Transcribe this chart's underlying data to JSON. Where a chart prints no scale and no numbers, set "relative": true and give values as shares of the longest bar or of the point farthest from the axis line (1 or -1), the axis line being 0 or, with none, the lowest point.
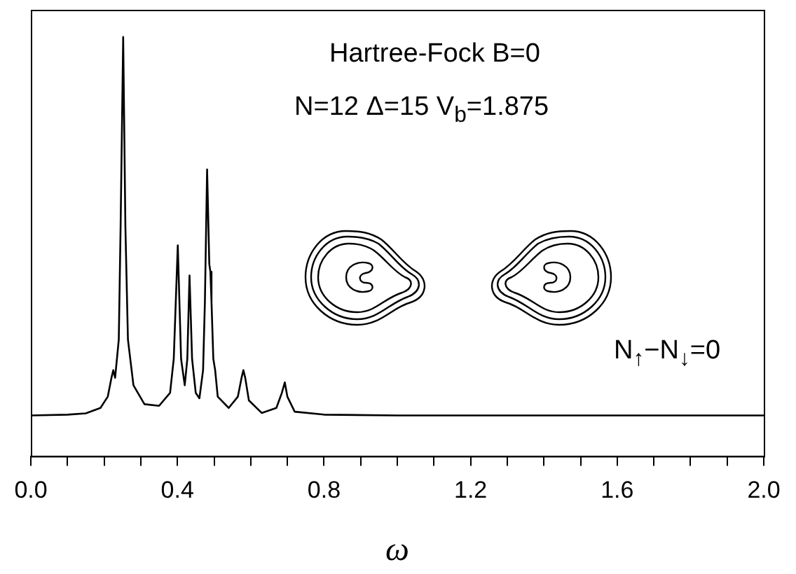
{
  "chart_data": {
    "type": "line",
    "relative": true,
    "xlabel": "ω",
    "annotations": [
      "Hartree-Fock  B=0",
      "N=12   Δ=15   V$_{b}$=1.875",
      "N$_{↑}$−N$_{↓}$=0"
    ],
    "xlim": [
      0,
      2.0
    ],
    "xticks": [
      {
        "value": 0,
        "label": "0.0"
      },
      {
        "value": 0.1,
        "label": null
      },
      {
        "value": 0.2,
        "label": null
      },
      {
        "value": 0.3,
        "label": null
      },
      {
        "value": 0.4,
        "label": "0.4"
      },
      {
        "value": 0.5,
        "label": null
      },
      {
        "value": 0.6,
        "label": null
      },
      {
        "value": 0.7,
        "label": null
      },
      {
        "value": 0.8,
        "label": "0.8"
      },
      {
        "value": 0.9,
        "label": null
      },
      {
        "value": 1.0,
        "label": null
      },
      {
        "value": 1.1,
        "label": null
      },
      {
        "value": 1.2,
        "label": "1.2"
      },
      {
        "value": 1.3,
        "label": null
      },
      {
        "value": 1.4,
        "label": null
      },
      {
        "value": 1.5,
        "label": null
      },
      {
        "value": 1.6,
        "label": "1.6"
      },
      {
        "value": 1.7,
        "label": null
      },
      {
        "value": 1.8,
        "label": null
      },
      {
        "value": 1.9,
        "label": null
      },
      {
        "value": 2.0,
        "label": "2.0"
      }
    ],
    "grid": false,
    "legend": false,
    "marker": "none",
    "line_style": "solid",
    "series": [
      {
        "color": "#000000",
        "x": [
          0,
          0.1,
          0.15,
          0.19,
          0.21,
          0.22,
          0.225,
          0.23,
          0.24,
          0.245,
          0.252,
          0.258,
          0.265,
          0.28,
          0.31,
          0.35,
          0.38,
          0.39,
          0.401,
          0.41,
          0.42,
          0.427,
          0.433,
          0.44,
          0.45,
          0.46,
          0.47,
          0.475,
          0.481,
          0.487,
          0.49,
          0.493,
          0.498,
          0.503,
          0.51,
          0.54,
          0.565,
          0.575,
          0.58,
          0.585,
          0.595,
          0.63,
          0.67,
          0.685,
          0.693,
          0.7,
          0.72,
          0.8,
          1.0,
          2.0
        ],
        "values": [
          0.097,
          0.099,
          0.102,
          0.115,
          0.142,
          0.187,
          0.205,
          0.187,
          0.278,
          0.549,
          1.0,
          0.549,
          0.278,
          0.169,
          0.124,
          0.12,
          0.151,
          0.232,
          0.503,
          0.232,
          0.169,
          0.232,
          0.431,
          0.232,
          0.151,
          0.138,
          0.205,
          0.368,
          0.684,
          0.458,
          0.44,
          0.368,
          0.232,
          0.205,
          0.142,
          0.115,
          0.142,
          0.187,
          0.205,
          0.187,
          0.133,
          0.103,
          0.115,
          0.151,
          0.176,
          0.142,
          0.106,
          0.099,
          0.097,
          0.097
        ]
      }
    ]
  }
}
